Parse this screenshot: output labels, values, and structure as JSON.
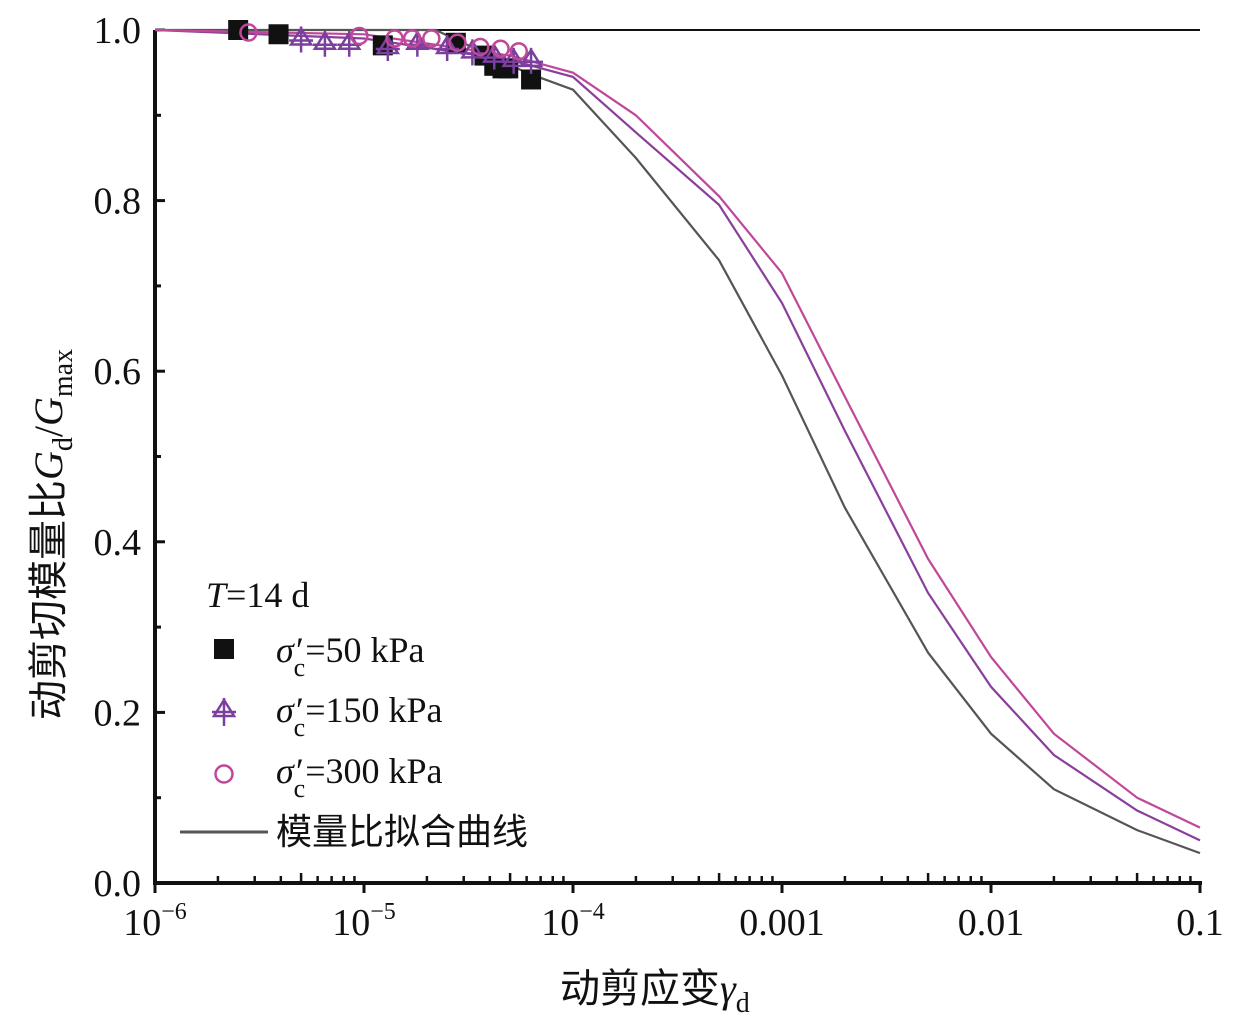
{
  "chart_data": {
    "type": "scatter",
    "title": "",
    "xlabel": "动剪应变γd",
    "xlabel_main": "动剪应变",
    "xlabel_sym": "γ",
    "xlabel_sub": "d",
    "ylabel_main": "动剪切模量比",
    "ylabel_sym1": "G",
    "ylabel_sub1": "d",
    "ylabel_slash": "/",
    "ylabel_sym2": "G",
    "ylabel_sub2": "max",
    "xscale": "log",
    "xlim": [
      1e-06,
      0.1
    ],
    "ylim": [
      0.0,
      1.0
    ],
    "xticks": [
      {
        "base": "10",
        "exp": "−6"
      },
      {
        "base": "10",
        "exp": "−5"
      },
      {
        "base": "10",
        "exp": "−4"
      },
      {
        "base": "0.001",
        "exp": ""
      },
      {
        "base": "0.01",
        "exp": ""
      },
      {
        "base": "0.1",
        "exp": ""
      }
    ],
    "yticks": [
      "0.0",
      "0.2",
      "0.4",
      "0.6",
      "0.8",
      "1.0"
    ],
    "grid": false,
    "legend": {
      "placement": "bottom-left",
      "title_T": "T",
      "title_rest": "=14 d",
      "sigma": "σ′",
      "sub": "c",
      "entries": [
        "=50 kPa",
        "=150 kPa",
        "=300 kPa"
      ],
      "fit_label": "模量比拟合曲线"
    },
    "series": [
      {
        "name": "σ′c=50 kPa",
        "marker": "square",
        "color": "#111111",
        "x": [
          2.5e-06,
          3.9e-06,
          1.23e-05,
          2.75e-05,
          3.77e-05,
          4.2e-05,
          4.6e-05,
          4.9e-05,
          6.3e-05
        ],
        "y": [
          1.0,
          0.995,
          0.982,
          0.985,
          0.97,
          0.958,
          0.955,
          0.955,
          0.942
        ]
      },
      {
        "name": "σ′c=150 kPa",
        "marker": "triangle-cross",
        "color": "#7b3f9e",
        "x": [
          5e-06,
          6.5e-06,
          8.5e-06,
          1.3e-05,
          1.8e-05,
          2.5e-05,
          3.3e-05,
          4.2e-05,
          5.2e-05,
          6.3e-05
        ],
        "y": [
          0.99,
          0.985,
          0.985,
          0.98,
          0.985,
          0.98,
          0.975,
          0.97,
          0.965,
          0.965
        ]
      },
      {
        "name": "σ′c=300 kPa",
        "marker": "circle",
        "color": "#c0489a",
        "x": [
          2.8e-06,
          9.5e-06,
          1.4e-05,
          1.7e-05,
          2.1e-05,
          2.8e-05,
          3.6e-05,
          4.5e-05,
          5.5e-05
        ],
        "y": [
          0.997,
          0.993,
          0.99,
          0.99,
          0.99,
          0.985,
          0.98,
          0.978,
          0.975
        ]
      }
    ],
    "fit_curves": [
      {
        "name": "50 kPa fit",
        "color": "#555555",
        "x": [
          1e-06,
          2.2e-05,
          6e-05,
          0.0001,
          0.0002,
          0.0005,
          0.001,
          0.002,
          0.005,
          0.01,
          0.02,
          0.05,
          0.1
        ],
        "y": [
          1.0,
          1.0,
          0.95,
          0.93,
          0.85,
          0.73,
          0.595,
          0.44,
          0.27,
          0.175,
          0.11,
          0.062,
          0.035
        ]
      },
      {
        "name": "150 kPa fit",
        "color": "#8a3f9a",
        "x": [
          1e-06,
          1e-05,
          5e-05,
          0.0001,
          0.0002,
          0.0005,
          0.001,
          0.002,
          0.005,
          0.01,
          0.02,
          0.05,
          0.1
        ],
        "y": [
          1.0,
          0.99,
          0.965,
          0.945,
          0.88,
          0.795,
          0.68,
          0.53,
          0.34,
          0.23,
          0.15,
          0.085,
          0.05
        ]
      },
      {
        "name": "300 kPa fit",
        "color": "#c0489a",
        "x": [
          1e-06,
          1e-05,
          5e-05,
          0.0001,
          0.0002,
          0.0005,
          0.001,
          0.002,
          0.005,
          0.01,
          0.02,
          0.05,
          0.1
        ],
        "y": [
          1.0,
          0.995,
          0.97,
          0.95,
          0.9,
          0.805,
          0.715,
          0.57,
          0.38,
          0.265,
          0.175,
          0.1,
          0.065
        ]
      }
    ]
  }
}
